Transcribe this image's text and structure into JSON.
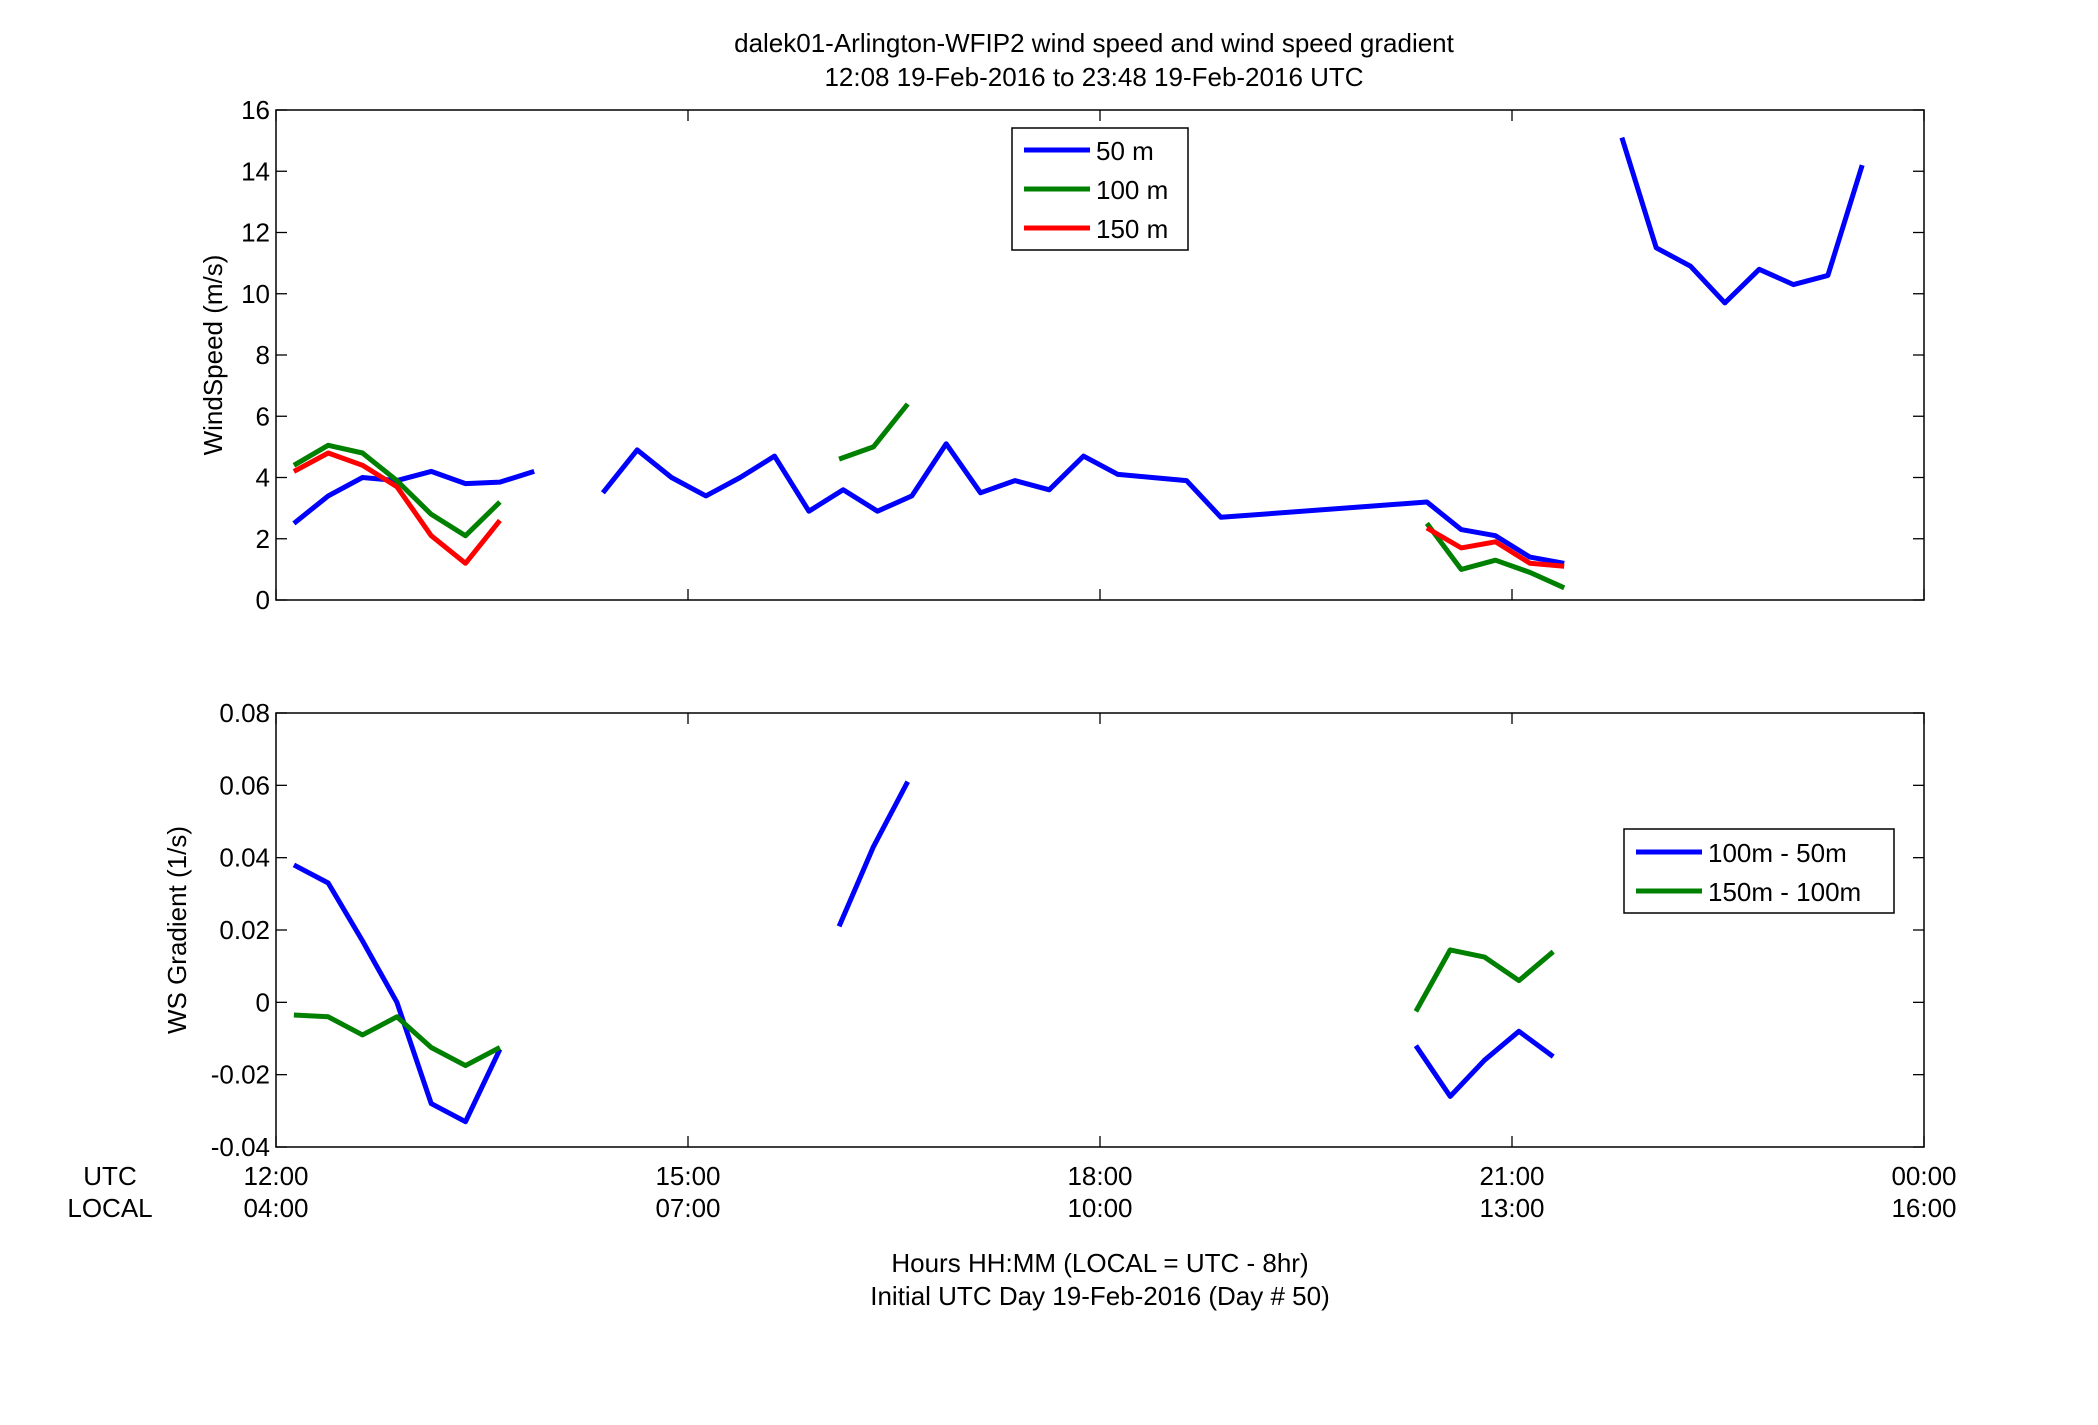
{
  "title": {
    "line1": "dalek01-Arlington-WFIP2  wind speed and wind speed gradient",
    "line2": "12:08 19-Feb-2016 to 23:48 19-Feb-2016  UTC"
  },
  "xaxis": {
    "row_label_utc": "UTC",
    "row_label_local": "LOCAL",
    "utc_ticks": [
      "12:00",
      "15:00",
      "18:00",
      "21:00",
      "00:00"
    ],
    "local_ticks": [
      "04:00",
      "07:00",
      "10:00",
      "13:00",
      "16:00"
    ],
    "label_line1": "Hours HH:MM  (LOCAL = UTC - 8hr)",
    "label_line2": "Initial UTC Day 19-Feb-2016 (Day # 50)"
  },
  "colors": {
    "blue": "#0000ff",
    "green": "#008000",
    "red": "#ff0000"
  },
  "chart_data": [
    {
      "type": "line",
      "ylabel": "WindSpeed (m/s)",
      "xlim": [
        12,
        24
      ],
      "ylim": [
        0,
        16
      ],
      "yticks": [
        0,
        2,
        4,
        6,
        8,
        10,
        12,
        14,
        16
      ],
      "legend_position": "top-center",
      "series": [
        {
          "name": "50 m",
          "color": "#0000ff",
          "segments": [
            [
              [
                12.13,
                2.5
              ],
              [
                12.38,
                3.4
              ],
              [
                12.63,
                4.0
              ],
              [
                12.88,
                3.9
              ],
              [
                13.13,
                4.2
              ],
              [
                13.38,
                3.8
              ],
              [
                13.63,
                3.85
              ],
              [
                13.88,
                4.2
              ]
            ],
            [
              [
                14.38,
                3.5
              ],
              [
                14.63,
                4.9
              ],
              [
                14.88,
                4.0
              ],
              [
                15.13,
                3.4
              ],
              [
                15.38,
                4.0
              ],
              [
                15.63,
                4.7
              ],
              [
                15.88,
                2.9
              ],
              [
                16.13,
                3.6
              ],
              [
                16.38,
                2.9
              ],
              [
                16.63,
                3.4
              ],
              [
                16.88,
                5.1
              ],
              [
                17.13,
                3.5
              ],
              [
                17.38,
                3.9
              ],
              [
                17.63,
                3.6
              ],
              [
                17.88,
                4.7
              ],
              [
                18.13,
                4.1
              ],
              [
                18.38,
                4.0
              ],
              [
                18.63,
                3.9
              ],
              [
                18.88,
                2.7
              ],
              [
                20.38,
                3.2
              ],
              [
                20.63,
                2.3
              ],
              [
                20.88,
                2.1
              ],
              [
                21.13,
                1.4
              ],
              [
                21.38,
                1.2
              ]
            ],
            [
              [
                21.8,
                15.1
              ],
              [
                22.05,
                11.5
              ],
              [
                22.3,
                10.9
              ],
              [
                22.55,
                9.7
              ],
              [
                22.8,
                10.8
              ],
              [
                23.05,
                10.3
              ],
              [
                23.3,
                10.6
              ],
              [
                23.55,
                14.2
              ]
            ]
          ]
        },
        {
          "name": "100 m",
          "color": "#008000",
          "segments": [
            [
              [
                12.13,
                4.4
              ],
              [
                12.38,
                5.05
              ],
              [
                12.63,
                4.8
              ],
              [
                12.88,
                3.9
              ],
              [
                13.13,
                2.8
              ],
              [
                13.38,
                2.1
              ],
              [
                13.63,
                3.2
              ]
            ],
            [
              [
                16.1,
                4.6
              ],
              [
                16.35,
                5.0
              ],
              [
                16.6,
                6.4
              ]
            ],
            [
              [
                20.38,
                2.5
              ],
              [
                20.63,
                1.0
              ],
              [
                20.88,
                1.3
              ],
              [
                21.13,
                0.9
              ],
              [
                21.38,
                0.4
              ]
            ]
          ]
        },
        {
          "name": "150 m",
          "color": "#ff0000",
          "segments": [
            [
              [
                12.13,
                4.2
              ],
              [
                12.38,
                4.8
              ],
              [
                12.63,
                4.4
              ],
              [
                12.88,
                3.7
              ],
              [
                13.13,
                2.1
              ],
              [
                13.38,
                1.2
              ],
              [
                13.63,
                2.6
              ]
            ],
            [
              [
                20.38,
                2.35
              ],
              [
                20.63,
                1.7
              ],
              [
                20.88,
                1.9
              ],
              [
                21.13,
                1.2
              ],
              [
                21.38,
                1.1
              ]
            ]
          ]
        }
      ]
    },
    {
      "type": "line",
      "ylabel": "WS Gradient (1/s)",
      "xlim": [
        12,
        24
      ],
      "ylim": [
        -0.04,
        0.08
      ],
      "yticks": [
        -0.04,
        -0.02,
        0,
        0.02,
        0.04,
        0.06,
        0.08
      ],
      "ytick_labels": [
        "-0.04",
        "-0.02",
        "0",
        "0.02",
        "0.04",
        "0.06",
        "0.08"
      ],
      "legend_position": "right",
      "series": [
        {
          "name": "100m - 50m",
          "color": "#0000ff",
          "segments": [
            [
              [
                12.13,
                0.038
              ],
              [
                12.38,
                0.033
              ],
              [
                12.63,
                0.017
              ],
              [
                12.88,
                0.0
              ],
              [
                13.13,
                -0.028
              ],
              [
                13.38,
                -0.033
              ],
              [
                13.63,
                -0.013
              ]
            ],
            [
              [
                16.1,
                0.021
              ],
              [
                16.35,
                0.043
              ],
              [
                16.6,
                0.061
              ]
            ],
            [
              [
                20.3,
                -0.012
              ],
              [
                20.55,
                -0.026
              ],
              [
                20.8,
                -0.016
              ],
              [
                21.05,
                -0.008
              ],
              [
                21.3,
                -0.015
              ]
            ]
          ]
        },
        {
          "name": "150m - 100m",
          "color": "#008000",
          "segments": [
            [
              [
                12.13,
                -0.0035
              ],
              [
                12.38,
                -0.004
              ],
              [
                12.63,
                -0.009
              ],
              [
                12.88,
                -0.004
              ],
              [
                13.13,
                -0.0125
              ],
              [
                13.38,
                -0.0175
              ],
              [
                13.63,
                -0.0125
              ]
            ],
            [
              [
                20.3,
                -0.0025
              ],
              [
                20.55,
                0.0145
              ],
              [
                20.8,
                0.0125
              ],
              [
                21.05,
                0.006
              ],
              [
                21.3,
                0.014
              ]
            ]
          ]
        }
      ]
    }
  ]
}
